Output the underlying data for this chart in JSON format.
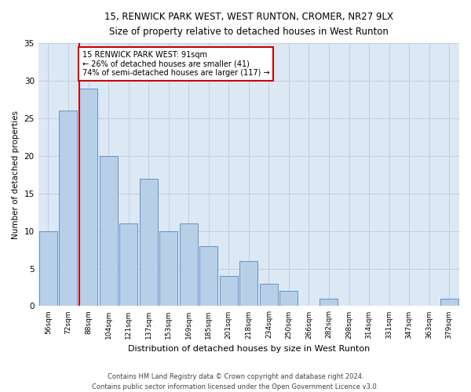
{
  "title1": "15, RENWICK PARK WEST, WEST RUNTON, CROMER, NR27 9LX",
  "title2": "Size of property relative to detached houses in West Runton",
  "xlabel": "Distribution of detached houses by size in West Runton",
  "ylabel": "Number of detached properties",
  "categories": [
    "56sqm",
    "72sqm",
    "88sqm",
    "104sqm",
    "121sqm",
    "137sqm",
    "153sqm",
    "169sqm",
    "185sqm",
    "201sqm",
    "218sqm",
    "234sqm",
    "250sqm",
    "266sqm",
    "282sqm",
    "298sqm",
    "314sqm",
    "331sqm",
    "347sqm",
    "363sqm",
    "379sqm"
  ],
  "values": [
    10,
    26,
    29,
    20,
    11,
    17,
    10,
    11,
    8,
    4,
    6,
    3,
    2,
    0,
    1,
    0,
    0,
    0,
    0,
    0,
    1
  ],
  "bar_color": "#b8cfe8",
  "bar_edge_color": "#5588bb",
  "vline_x_index": 2,
  "vline_color": "#cc0000",
  "annotation_text": "15 RENWICK PARK WEST: 91sqm\n← 26% of detached houses are smaller (41)\n74% of semi-detached houses are larger (117) →",
  "annotation_box_color": "#ffffff",
  "annotation_box_edge": "#cc0000",
  "grid_color": "#c0d0e0",
  "bg_color": "#dce8f4",
  "ylim": [
    0,
    35
  ],
  "yticks": [
    0,
    5,
    10,
    15,
    20,
    25,
    30,
    35
  ],
  "footer1": "Contains HM Land Registry data © Crown copyright and database right 2024.",
  "footer2": "Contains public sector information licensed under the Open Government Licence v3.0."
}
